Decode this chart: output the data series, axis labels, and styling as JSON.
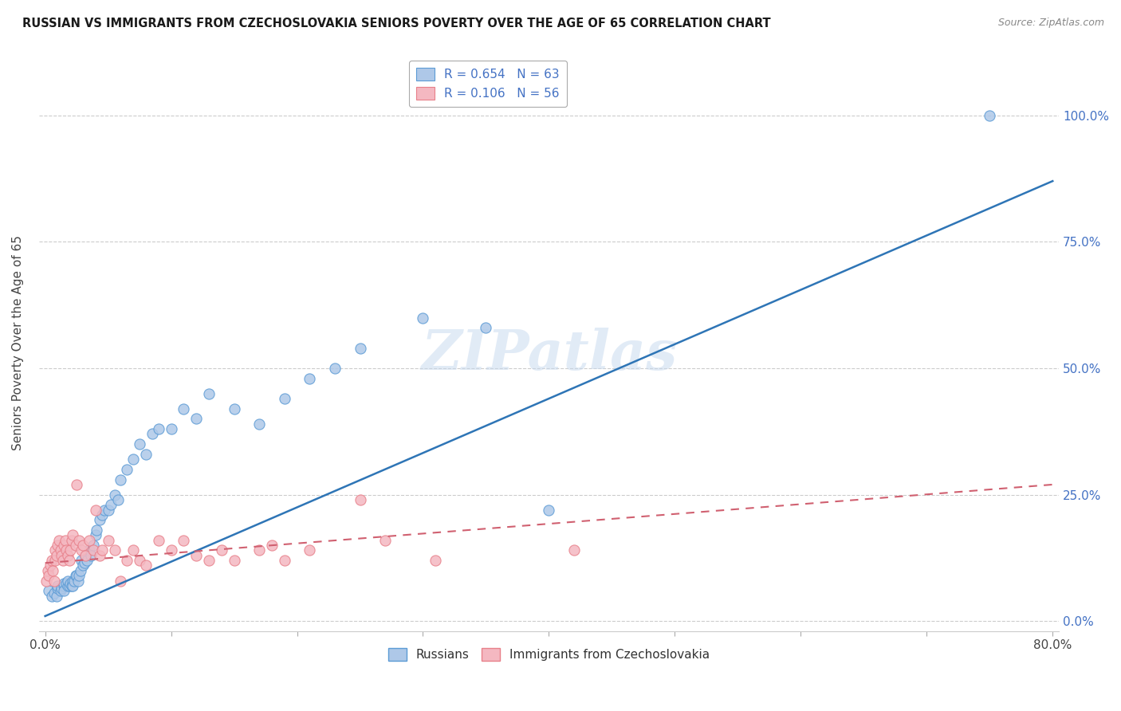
{
  "title": "RUSSIAN VS IMMIGRANTS FROM CZECHOSLOVAKIA SENIORS POVERTY OVER THE AGE OF 65 CORRELATION CHART",
  "source": "Source: ZipAtlas.com",
  "ylabel": "Seniors Poverty Over the Age of 65",
  "xlim": [
    -0.005,
    0.805
  ],
  "ylim": [
    -0.02,
    1.12
  ],
  "xtick_pos": [
    0.0,
    0.1,
    0.2,
    0.3,
    0.4,
    0.5,
    0.6,
    0.7,
    0.8
  ],
  "xticklabels": [
    "0.0%",
    "",
    "",
    "",
    "",
    "",
    "",
    "",
    "80.0%"
  ],
  "ytick_pos": [
    0.0,
    0.25,
    0.5,
    0.75,
    1.0
  ],
  "ytick_labels_right": [
    "0.0%",
    "25.0%",
    "50.0%",
    "75.0%",
    "100.0%"
  ],
  "russian_fill": "#aec8e8",
  "russian_edge": "#5b9bd5",
  "czech_fill": "#f4b8c1",
  "czech_edge": "#e8808a",
  "trendline_russian_color": "#2e75b6",
  "trendline_czech_color": "#d06070",
  "watermark": "ZIPatlas",
  "legend_r_russian": "0.654",
  "legend_n_russian": "63",
  "legend_r_czech": "0.106",
  "legend_n_czech": "56",
  "legend_label_russian": "Russians",
  "legend_label_czech": "Immigrants from Czechoslovakia",
  "trendline_russian_x0": 0.0,
  "trendline_russian_y0": 0.01,
  "trendline_russian_x1": 0.8,
  "trendline_russian_y1": 0.87,
  "trendline_czech_x0": 0.0,
  "trendline_czech_y0": 0.115,
  "trendline_czech_x1": 0.8,
  "trendline_czech_y1": 0.27,
  "russians_x": [
    0.003,
    0.005,
    0.007,
    0.009,
    0.01,
    0.01,
    0.012,
    0.013,
    0.015,
    0.015,
    0.015,
    0.017,
    0.018,
    0.018,
    0.019,
    0.02,
    0.021,
    0.022,
    0.022,
    0.023,
    0.024,
    0.025,
    0.026,
    0.027,
    0.028,
    0.029,
    0.03,
    0.031,
    0.032,
    0.033,
    0.035,
    0.036,
    0.038,
    0.04,
    0.041,
    0.043,
    0.045,
    0.047,
    0.05,
    0.052,
    0.055,
    0.058,
    0.06,
    0.065,
    0.07,
    0.075,
    0.08,
    0.085,
    0.09,
    0.1,
    0.11,
    0.12,
    0.13,
    0.15,
    0.17,
    0.19,
    0.21,
    0.23,
    0.25,
    0.3,
    0.35,
    0.4,
    0.75
  ],
  "russians_y": [
    0.06,
    0.05,
    0.055,
    0.05,
    0.065,
    0.07,
    0.06,
    0.065,
    0.07,
    0.075,
    0.06,
    0.075,
    0.07,
    0.08,
    0.07,
    0.075,
    0.07,
    0.08,
    0.07,
    0.08,
    0.09,
    0.09,
    0.08,
    0.09,
    0.1,
    0.12,
    0.11,
    0.115,
    0.13,
    0.12,
    0.14,
    0.13,
    0.15,
    0.17,
    0.18,
    0.2,
    0.21,
    0.22,
    0.22,
    0.23,
    0.25,
    0.24,
    0.28,
    0.3,
    0.32,
    0.35,
    0.33,
    0.37,
    0.38,
    0.38,
    0.42,
    0.4,
    0.45,
    0.42,
    0.39,
    0.44,
    0.48,
    0.5,
    0.54,
    0.6,
    0.58,
    0.22,
    1.0
  ],
  "czech_x": [
    0.001,
    0.002,
    0.003,
    0.004,
    0.005,
    0.006,
    0.007,
    0.008,
    0.008,
    0.009,
    0.01,
    0.011,
    0.012,
    0.013,
    0.014,
    0.015,
    0.016,
    0.017,
    0.018,
    0.019,
    0.02,
    0.021,
    0.022,
    0.024,
    0.025,
    0.027,
    0.029,
    0.03,
    0.032,
    0.035,
    0.038,
    0.04,
    0.043,
    0.045,
    0.05,
    0.055,
    0.06,
    0.065,
    0.07,
    0.075,
    0.08,
    0.09,
    0.1,
    0.11,
    0.12,
    0.13,
    0.14,
    0.15,
    0.17,
    0.18,
    0.19,
    0.21,
    0.25,
    0.27,
    0.31,
    0.42
  ],
  "czech_y": [
    0.08,
    0.1,
    0.09,
    0.11,
    0.12,
    0.1,
    0.08,
    0.12,
    0.14,
    0.13,
    0.15,
    0.16,
    0.14,
    0.13,
    0.12,
    0.15,
    0.16,
    0.14,
    0.13,
    0.12,
    0.14,
    0.16,
    0.17,
    0.15,
    0.27,
    0.16,
    0.14,
    0.15,
    0.13,
    0.16,
    0.14,
    0.22,
    0.13,
    0.14,
    0.16,
    0.14,
    0.08,
    0.12,
    0.14,
    0.12,
    0.11,
    0.16,
    0.14,
    0.16,
    0.13,
    0.12,
    0.14,
    0.12,
    0.14,
    0.15,
    0.12,
    0.14,
    0.24,
    0.16,
    0.12,
    0.14
  ]
}
